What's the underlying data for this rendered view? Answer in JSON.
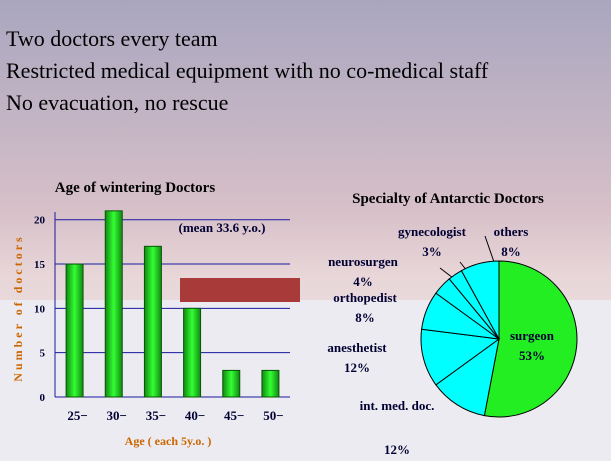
{
  "slide": {
    "lines": [
      "Two doctors every team",
      "Restricted medical equipment with no co-medical staff",
      "No evacuation, no rescue"
    ]
  },
  "chart_data": [
    {
      "type": "bar",
      "title": "Age of wintering Doctors",
      "annotation": "(mean 33.6 y.o.)",
      "x_label": "Age ( each 5y.o. )",
      "y_label": "Number of doctors",
      "categories": [
        "25−",
        "30−",
        "35−",
        "40−",
        "45−",
        "50−"
      ],
      "values": [
        15,
        21,
        17,
        10,
        3,
        3
      ],
      "color": "#22cc22",
      "ylim": [
        0,
        22
      ],
      "yticks": [
        0,
        5,
        10,
        15,
        20
      ],
      "grid": true
    },
    {
      "type": "pie",
      "title": "Specialty of Antarctic Doctors",
      "categories": [
        "surgeon",
        "int. med. doc.",
        "anesthetist",
        "orthopedist",
        "neurosurgen",
        "gynecologist",
        "others"
      ],
      "values": [
        53,
        12,
        12,
        8,
        4,
        3,
        8
      ],
      "value_labels": [
        "53%",
        "12%",
        "12%",
        "8%",
        "4%",
        "3%",
        "8%"
      ],
      "colors": [
        "#22ee22",
        "#00ffff",
        "#00ffff",
        "#00ffff",
        "#00ffff",
        "#00ffff",
        "#00ffff"
      ]
    }
  ]
}
